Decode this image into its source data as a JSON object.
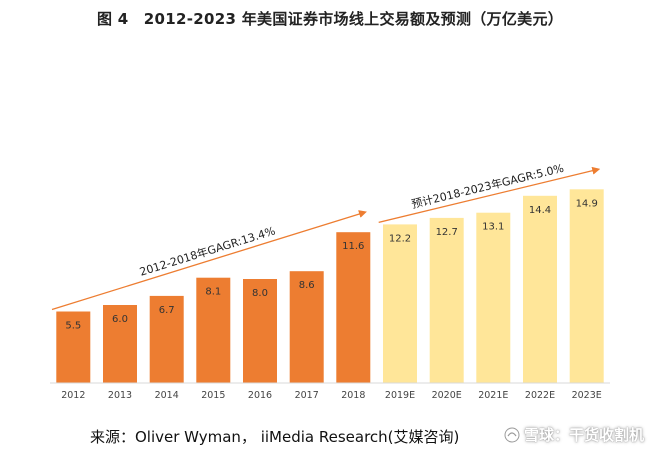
{
  "title": "图 4　2012-2023 年美国证券市场线上交易额及预测（万亿美元）",
  "source": "来源：Oliver Wyman， iiMedia Research(艾媒咨询)",
  "watermark": "雪球：干货收割机",
  "colors": {
    "actual": "#ED7D31",
    "forecast": "#FFE699",
    "arrow": "#ED7D31",
    "axis": "#D9D9D9"
  },
  "chart_data": {
    "type": "bar",
    "categories": [
      "2012",
      "2013",
      "2014",
      "2015",
      "2016",
      "2017",
      "2018",
      "2019E",
      "2020E",
      "2021E",
      "2022E",
      "2023E"
    ],
    "values": [
      5.5,
      6.0,
      6.7,
      8.1,
      8.0,
      8.6,
      11.6,
      12.2,
      12.7,
      13.1,
      14.4,
      14.9
    ],
    "data_labels": [
      "5.5",
      "6.0",
      "6.7",
      "8.1",
      "8.0",
      "8.6",
      "11.6",
      "12.2",
      "12.7",
      "13.1",
      "14.4",
      "14.9"
    ],
    "forecast_from_index": 7,
    "ylim": [
      0,
      17
    ],
    "grid": false,
    "annotations": [
      {
        "text": "2012-2018年GAGR:13.4%",
        "from_index": 0,
        "to_index": 6
      },
      {
        "text": "预计2018-2023年GAGR:5.0%",
        "from_index": 7,
        "to_index": 11
      }
    ]
  }
}
